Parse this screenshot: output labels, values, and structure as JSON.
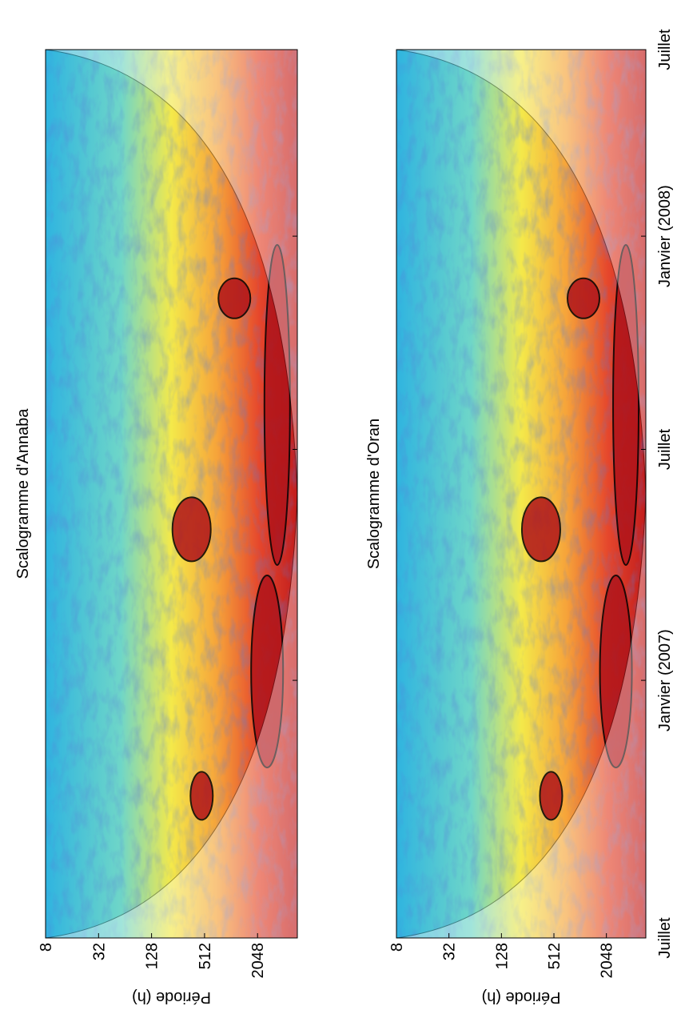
{
  "chart_data": [
    {
      "type": "heatmap",
      "title": "Scalogramme d'Annaba",
      "y_label": "Période (h)",
      "log_y": true,
      "ylim": [
        8,
        5800
      ],
      "yticks": [
        8,
        32,
        128,
        512,
        2048
      ],
      "x_tick_labels": []
    },
    {
      "type": "heatmap",
      "title": "Scalogramme d'Oran",
      "y_label": "Période (h)",
      "log_y": true,
      "ylim": [
        8,
        5800
      ],
      "yticks": [
        8,
        32,
        128,
        512,
        2048
      ],
      "x_tick_labels": [
        "Juillet",
        "Janvier (2007)",
        "Juillet",
        "Janvier (2008)",
        "Juillet"
      ]
    }
  ]
}
